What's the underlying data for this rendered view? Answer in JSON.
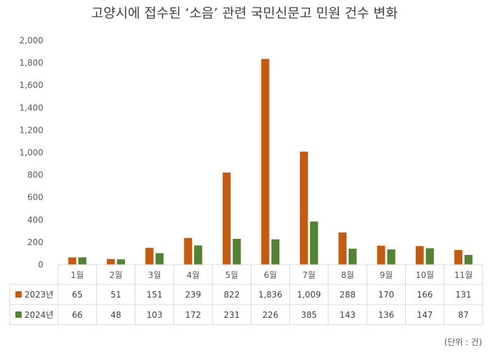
{
  "chart_data": {
    "type": "bar",
    "title": "고양시에 접수된 ‘소음’ 관련 국민신문고 민원 건수 변화",
    "categories": [
      "1월",
      "2월",
      "3월",
      "4월",
      "5월",
      "6월",
      "7월",
      "8월",
      "9월",
      "10월",
      "11월"
    ],
    "series": [
      {
        "name": "2023년",
        "color": "#C55A11",
        "values": [
          65,
          51,
          151,
          239,
          822,
          1836,
          1009,
          288,
          170,
          166,
          131
        ],
        "labels": [
          "65",
          "51",
          "151",
          "239",
          "822",
          "1,836",
          "1,009",
          "288",
          "170",
          "166",
          "131"
        ]
      },
      {
        "name": "2024년",
        "color": "#548235",
        "values": [
          66,
          48,
          103,
          172,
          231,
          226,
          385,
          143,
          136,
          147,
          87
        ],
        "labels": [
          "66",
          "48",
          "103",
          "172",
          "231",
          "226",
          "385",
          "143",
          "136",
          "147",
          "87"
        ]
      }
    ],
    "ylim": [
      0,
      2000
    ],
    "yticks": [
      "0",
      "200",
      "400",
      "600",
      "800",
      "1,000",
      "1,200",
      "1,400",
      "1,600",
      "1,800",
      "2,000"
    ],
    "grid": false,
    "legend": "data-table",
    "unit_note": "(단위 : 건)"
  }
}
